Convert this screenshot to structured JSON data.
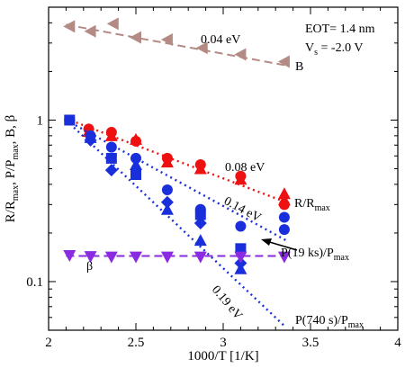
{
  "chart_data": {
    "type": "scatter",
    "title": "",
    "xlabel": "1000/T  [1/K]",
    "ylabel": "R/R",
    "ylabel_parts": [
      {
        "text": "R/R"
      },
      {
        "text": "max",
        "sub": true
      },
      {
        "text": ", P/P"
      },
      {
        "text": "max",
        "sub": true
      },
      {
        "text": ", B, β"
      }
    ],
    "xlim": [
      2,
      4
    ],
    "ylim": [
      0.05,
      5
    ],
    "yscale": "log",
    "grid": false,
    "x_ticks": [
      "2",
      "2.5",
      "3",
      "3.5",
      "4"
    ],
    "y_ticks": [
      "0.1",
      "1"
    ],
    "colors": {
      "red": "#ee1111",
      "blue": "#1a2fdc",
      "purple": "#8a2be2",
      "brown": "#b48a84"
    },
    "annotation_box": [
      "EOT= 1.4 nm",
      "V_s = -2.0 V"
    ],
    "series": [
      {
        "label": "B",
        "color": "#b48a84",
        "marker": "triangle-left",
        "points": [
          [
            2.12,
            3.8
          ],
          [
            2.24,
            3.55
          ],
          [
            2.37,
            3.95
          ],
          [
            2.5,
            3.25
          ],
          [
            2.68,
            3.15
          ],
          [
            2.88,
            2.8
          ],
          [
            3.1,
            2.55
          ],
          [
            3.35,
            2.3
          ]
        ],
        "fit": {
          "x": [
            2.1,
            3.36
          ],
          "y": [
            3.9,
            2.18
          ],
          "annotation": "0.04 eV"
        }
      },
      {
        "label": "R/R_max",
        "color": "#ee1111",
        "marker": "circle/triangle",
        "points": [
          [
            2.12,
            1.0
          ],
          [
            2.23,
            0.85
          ],
          [
            2.23,
            0.88
          ],
          [
            2.36,
            0.8
          ],
          [
            2.36,
            0.84
          ],
          [
            2.5,
            0.76
          ],
          [
            2.5,
            0.74
          ],
          [
            2.68,
            0.55
          ],
          [
            2.68,
            0.58
          ],
          [
            2.87,
            0.5
          ],
          [
            2.87,
            0.53
          ],
          [
            3.1,
            0.43
          ],
          [
            3.1,
            0.45
          ],
          [
            3.35,
            0.32
          ],
          [
            3.35,
            0.3
          ],
          [
            3.35,
            0.35
          ]
        ],
        "fit": {
          "x": [
            2.1,
            3.36
          ],
          "y": [
            1.02,
            0.31
          ],
          "annotation": "0.08 eV"
        }
      },
      {
        "label": "P(19 ks)/P_max",
        "color": "#1a2fdc",
        "marker": "circle",
        "points": [
          [
            2.12,
            1.0
          ],
          [
            2.24,
            0.8
          ],
          [
            2.36,
            0.68
          ],
          [
            2.5,
            0.58
          ],
          [
            2.68,
            0.37
          ],
          [
            2.87,
            0.28
          ],
          [
            3.1,
            0.22
          ],
          [
            3.35,
            0.25
          ],
          [
            3.35,
            0.21
          ]
        ],
        "fit": {
          "x": [
            2.1,
            3.36
          ],
          "y": [
            1.0,
            0.18
          ],
          "annotation": "0.14 eV"
        }
      },
      {
        "label": "P(740 s)/P_max",
        "color": "#1a2fdc",
        "marker": "square/diamond/triangle",
        "points": [
          [
            2.12,
            1.0
          ],
          [
            2.24,
            0.75
          ],
          [
            2.24,
            0.78
          ],
          [
            2.36,
            0.58
          ],
          [
            2.36,
            0.49
          ],
          [
            2.5,
            0.53
          ],
          [
            2.5,
            0.46
          ],
          [
            2.68,
            0.31
          ],
          [
            2.68,
            0.28
          ],
          [
            2.87,
            0.26
          ],
          [
            2.87,
            0.23
          ],
          [
            2.87,
            0.18
          ],
          [
            3.1,
            0.16
          ],
          [
            3.1,
            0.13
          ],
          [
            3.1,
            0.12
          ]
        ],
        "fit": {
          "x": [
            2.1,
            3.36
          ],
          "y": [
            1.0,
            0.052
          ],
          "annotation": "0.19 eV"
        }
      },
      {
        "label": "β",
        "color": "#8a2be2",
        "marker": "triangle-down",
        "points": [
          [
            2.12,
            0.145
          ],
          [
            2.24,
            0.143
          ],
          [
            2.36,
            0.142
          ],
          [
            2.5,
            0.142
          ],
          [
            2.68,
            0.142
          ],
          [
            2.87,
            0.142
          ],
          [
            3.1,
            0.142
          ],
          [
            3.35,
            0.142
          ]
        ],
        "fit": {
          "x": [
            2.1,
            3.36
          ],
          "y": [
            0.144,
            0.144
          ]
        }
      }
    ],
    "series_labels": [
      {
        "main": "B",
        "sub": ""
      },
      {
        "main": "R/R",
        "sub": "max"
      },
      {
        "main": "P(19 ks)/P",
        "sub": "max"
      },
      {
        "main": "P(740 s)/P",
        "sub": "max"
      },
      {
        "main": "β",
        "sub": ""
      }
    ]
  }
}
